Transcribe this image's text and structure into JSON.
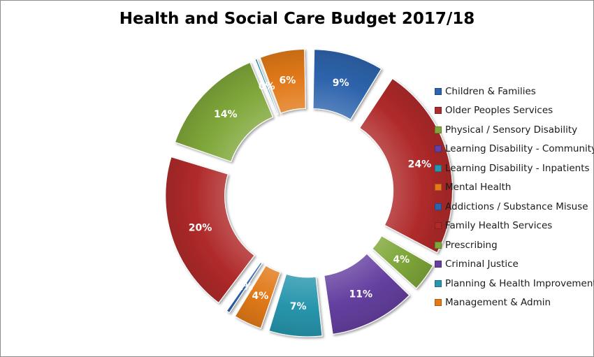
{
  "chart_data": {
    "type": "pie",
    "subtype": "exploded-doughnut",
    "title": "Health and Social Care Budget 2017/18",
    "categories": [
      "Children & Families",
      "Older Peoples Services",
      "Physical / Sensory Disability",
      "Learning Disability - Community",
      "Learning Disability - Inpatients",
      "Mental Health",
      "Addictions / Substance Misuse",
      "Family Health Services",
      "Prescribing",
      "Criminal Justice",
      "Planning & Health Improvement",
      "Management & Admin"
    ],
    "values": [
      9,
      24,
      4,
      11,
      7,
      4,
      1,
      20,
      14,
      0,
      6
    ],
    "labels": [
      "9%",
      "24%",
      "4%",
      "11%",
      "7%",
      "4%",
      "1%",
      "20%",
      "14%",
      "0%",
      "6%"
    ],
    "slice_categories": [
      "Children & Families",
      "Older Peoples Services",
      "Physical / Sensory Disability",
      "Learning Disability - Community",
      "Learning Disability - Inpatients",
      "Mental Health",
      "Addictions / Substance Misuse",
      "Family Health Services",
      "Prescribing",
      "Planning & Health Improvement",
      "Management & Admin"
    ],
    "colors": [
      "#2e64ad",
      "#b02a2a",
      "#7fa73a",
      "#6540a0",
      "#2896ad",
      "#e27a1a",
      "#2e64ad",
      "#b02a2a",
      "#7fa73a",
      "#6540a0",
      "#2896ad",
      "#e27a1a"
    ],
    "legend_position": "right"
  }
}
